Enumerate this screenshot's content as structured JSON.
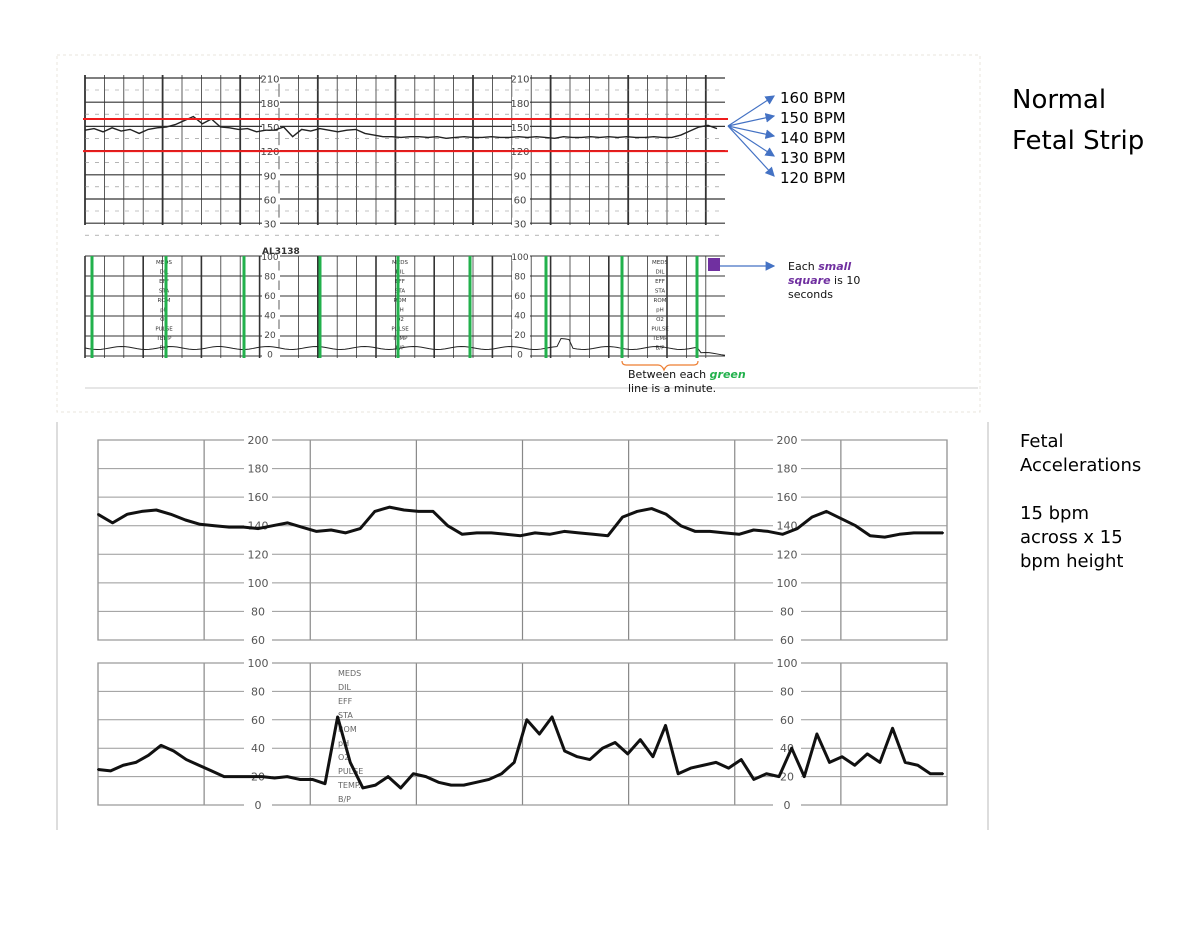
{
  "slide_title": "Normal Fetal Strip",
  "accel_note": {
    "heading": "Fetal Accelerations",
    "line1": "15 bpm",
    "line2": "across x 15",
    "line3": "bpm height"
  },
  "top_strip": {
    "fhr_axis_labels": [
      "210",
      "180",
      "150",
      "120",
      "90",
      "60",
      "30"
    ],
    "uc_axis_labels": [
      "100",
      "80",
      "60",
      "40",
      "20",
      "0"
    ],
    "strip_stamp": "AL3138",
    "chart_side_labels": [
      "MEDS",
      "DIL",
      "EFF",
      "STA",
      "ROM",
      "pH",
      "O2",
      "PULSE",
      "TEMP",
      "B/P"
    ],
    "bpm_labels": [
      "160 BPM",
      "150 BPM",
      "140 BPM",
      "130 BPM",
      "120 BPM"
    ],
    "normal_range_bpm": [
      120,
      160
    ],
    "small_square_note": {
      "pre": "Each ",
      "em1": "small",
      "mid": " ",
      "em2": "square",
      "post": " is 10 seconds"
    },
    "minute_note": {
      "pre": "Between each ",
      "em": "green",
      "post": " line is a minute."
    },
    "colors": {
      "range_line": "#ee1c1c",
      "minute_line": "#22b14c",
      "arrow": "#4472c4",
      "square": "#7030a0",
      "brace": "#ed7d31"
    },
    "fhr_trace_bpm": [
      146,
      148,
      144,
      149,
      145,
      147,
      142,
      147,
      149,
      150,
      153,
      158,
      163,
      154,
      160,
      150,
      149,
      147,
      148,
      144,
      146,
      146,
      150,
      138,
      147,
      145,
      148,
      146,
      144,
      146,
      147,
      142,
      140,
      138,
      138,
      137,
      138,
      138,
      137,
      138,
      136,
      137,
      138,
      137,
      137,
      138,
      137,
      137,
      138,
      137,
      138,
      137,
      136,
      138,
      137,
      137,
      138,
      137,
      138,
      137,
      138,
      137,
      137,
      138,
      137,
      137,
      140,
      145,
      150,
      152,
      148
    ]
  },
  "chart_data": {
    "type": "line",
    "panels": [
      {
        "name": "",
        "ylim": [
          60,
          200
        ],
        "tick_labels": [
          "200",
          "180",
          "160",
          "140",
          "120",
          "100",
          "80",
          "60"
        ],
        "values": [
          148,
          142,
          148,
          150,
          151,
          148,
          144,
          141,
          140,
          139,
          139,
          138,
          140,
          142,
          139,
          136,
          137,
          135,
          138,
          150,
          153,
          151,
          150,
          150,
          140,
          134,
          135,
          135,
          134,
          133,
          135,
          134,
          136,
          135,
          134,
          133,
          146,
          150,
          152,
          148,
          140,
          136,
          136,
          135,
          134,
          137,
          136,
          134,
          138,
          146,
          150,
          145,
          140,
          133,
          132,
          134,
          135,
          135,
          135
        ]
      },
      {
        "name": "",
        "ylim": [
          0,
          100
        ],
        "tick_labels": [
          "100",
          "80",
          "60",
          "40",
          "20",
          "0"
        ],
        "side_labels": [
          "MEDS",
          "DIL",
          "EFF",
          "STA",
          "ROM",
          "pH",
          "O2",
          "PULSE",
          "TEMP.",
          "B/P"
        ],
        "values": [
          25,
          24,
          28,
          30,
          35,
          42,
          38,
          32,
          28,
          24,
          20,
          20,
          20,
          20,
          19,
          20,
          18,
          18,
          15,
          62,
          30,
          12,
          14,
          20,
          12,
          22,
          20,
          16,
          14,
          14,
          16,
          18,
          22,
          30,
          60,
          50,
          62,
          38,
          34,
          32,
          40,
          44,
          36,
          46,
          34,
          56,
          22,
          26,
          28,
          30,
          26,
          32,
          18,
          22,
          20,
          40,
          20,
          50,
          30,
          34,
          28,
          36,
          30,
          54,
          30,
          28,
          22,
          22
        ]
      }
    ],
    "grid": true
  }
}
